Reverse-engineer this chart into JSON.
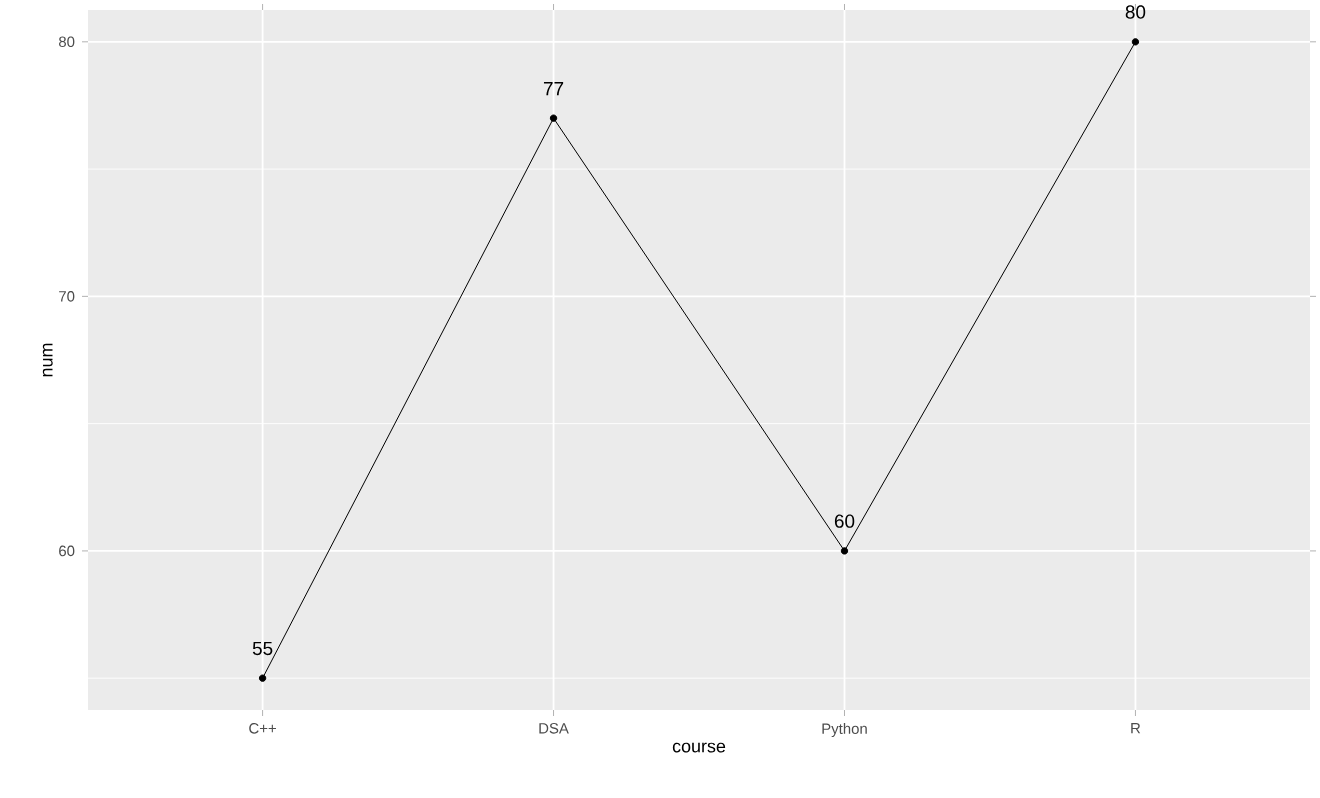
{
  "chart_data": {
    "type": "line",
    "xlabel": "course",
    "ylabel": "num",
    "categories": [
      "C++",
      "DSA",
      "Python",
      "R"
    ],
    "values": [
      55,
      77,
      60,
      80
    ],
    "color": "#000000",
    "marker": "circle",
    "line_style": "solid",
    "data_labels": true,
    "ylim": [
      53.75,
      81.25
    ],
    "yticks": [
      60,
      70,
      80
    ],
    "grid": true
  }
}
